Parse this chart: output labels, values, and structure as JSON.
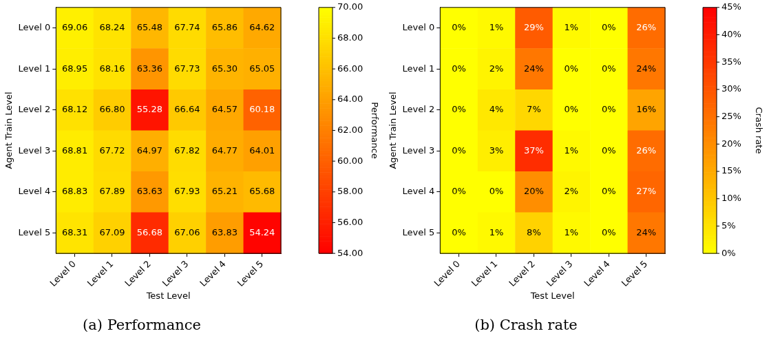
{
  "chart_data": [
    {
      "type": "heatmap",
      "title": "(a) Performance",
      "xlabel": "Test Level",
      "ylabel": "Agent Train Level",
      "clabel": "Performance",
      "categories": [
        "Level 0",
        "Level 1",
        "Level 2",
        "Level 3",
        "Level 4",
        "Level 5"
      ],
      "y_categories": [
        "Level 0",
        "Level 1",
        "Level 2",
        "Level 3",
        "Level 4",
        "Level 5"
      ],
      "cells": [
        [
          69.06,
          68.24,
          65.48,
          67.74,
          65.86,
          64.62
        ],
        [
          68.95,
          68.16,
          63.36,
          67.73,
          65.3,
          65.05
        ],
        [
          68.12,
          66.8,
          55.28,
          66.64,
          64.57,
          60.18
        ],
        [
          68.81,
          67.72,
          64.97,
          67.82,
          64.77,
          64.01
        ],
        [
          68.83,
          67.89,
          63.63,
          67.93,
          65.21,
          65.68
        ],
        [
          68.31,
          67.09,
          56.68,
          67.06,
          63.83,
          54.24
        ]
      ],
      "cell_labels": [
        [
          "69.06",
          "68.24",
          "65.48",
          "67.74",
          "65.86",
          "64.62"
        ],
        [
          "68.95",
          "68.16",
          "63.36",
          "67.73",
          "65.30",
          "65.05"
        ],
        [
          "68.12",
          "66.80",
          "55.28",
          "66.64",
          "64.57",
          "60.18"
        ],
        [
          "68.81",
          "67.72",
          "64.97",
          "67.82",
          "64.77",
          "64.01"
        ],
        [
          "68.83",
          "67.89",
          "63.63",
          "67.93",
          "65.21",
          "65.68"
        ],
        [
          "68.31",
          "67.09",
          "56.68",
          "67.06",
          "63.83",
          "54.24"
        ]
      ],
      "colors": [
        "#ff0000",
        "#ffff00"
      ],
      "clim": [
        54,
        70
      ],
      "cticks": [
        {
          "value": 54,
          "label": "54.00"
        },
        {
          "value": 56,
          "label": "56.00"
        },
        {
          "value": 58,
          "label": "58.00"
        },
        {
          "value": 60,
          "label": "60.00"
        },
        {
          "value": 62,
          "label": "62.00"
        },
        {
          "value": 64,
          "label": "64.00"
        },
        {
          "value": 66,
          "label": "66.00"
        },
        {
          "value": 68,
          "label": "68.00"
        },
        {
          "value": 70,
          "label": "70.00"
        }
      ]
    },
    {
      "type": "heatmap",
      "title": "(b) Crash rate",
      "xlabel": "Test Level",
      "ylabel": "Agent Train Level",
      "clabel": "Crash rate",
      "categories": [
        "Level 0",
        "Level 1",
        "Level 2",
        "Level 3",
        "Level 4",
        "Level 5"
      ],
      "y_categories": [
        "Level 0",
        "Level 1",
        "Level 2",
        "Level 3",
        "Level 4",
        "Level 5"
      ],
      "cells": [
        [
          0,
          1,
          29,
          1,
          0,
          26
        ],
        [
          0,
          2,
          24,
          0,
          0,
          24
        ],
        [
          0,
          4,
          7,
          0,
          0,
          16
        ],
        [
          0,
          3,
          37,
          1,
          0,
          26
        ],
        [
          0,
          0,
          20,
          2,
          0,
          27
        ],
        [
          0,
          1,
          8,
          1,
          0,
          24
        ]
      ],
      "cell_labels": [
        [
          "0%",
          "1%",
          "29%",
          "1%",
          "0%",
          "26%"
        ],
        [
          "0%",
          "2%",
          "24%",
          "0%",
          "0%",
          "24%"
        ],
        [
          "0%",
          "4%",
          "7%",
          "0%",
          "0%",
          "16%"
        ],
        [
          "0%",
          "3%",
          "37%",
          "1%",
          "0%",
          "26%"
        ],
        [
          "0%",
          "0%",
          "20%",
          "2%",
          "0%",
          "27%"
        ],
        [
          "0%",
          "1%",
          "8%",
          "1%",
          "0%",
          "24%"
        ]
      ],
      "colors": [
        "#ffff00",
        "#ff0000"
      ],
      "clim": [
        0,
        45
      ],
      "cticks": [
        {
          "value": 0,
          "label": "0%"
        },
        {
          "value": 5,
          "label": "5%"
        },
        {
          "value": 10,
          "label": "10%"
        },
        {
          "value": 15,
          "label": "15%"
        },
        {
          "value": 20,
          "label": "20%"
        },
        {
          "value": 25,
          "label": "25%"
        },
        {
          "value": 30,
          "label": "30%"
        },
        {
          "value": 35,
          "label": "35%"
        },
        {
          "value": 40,
          "label": "40%"
        },
        {
          "value": 45,
          "label": "45%"
        }
      ]
    }
  ]
}
